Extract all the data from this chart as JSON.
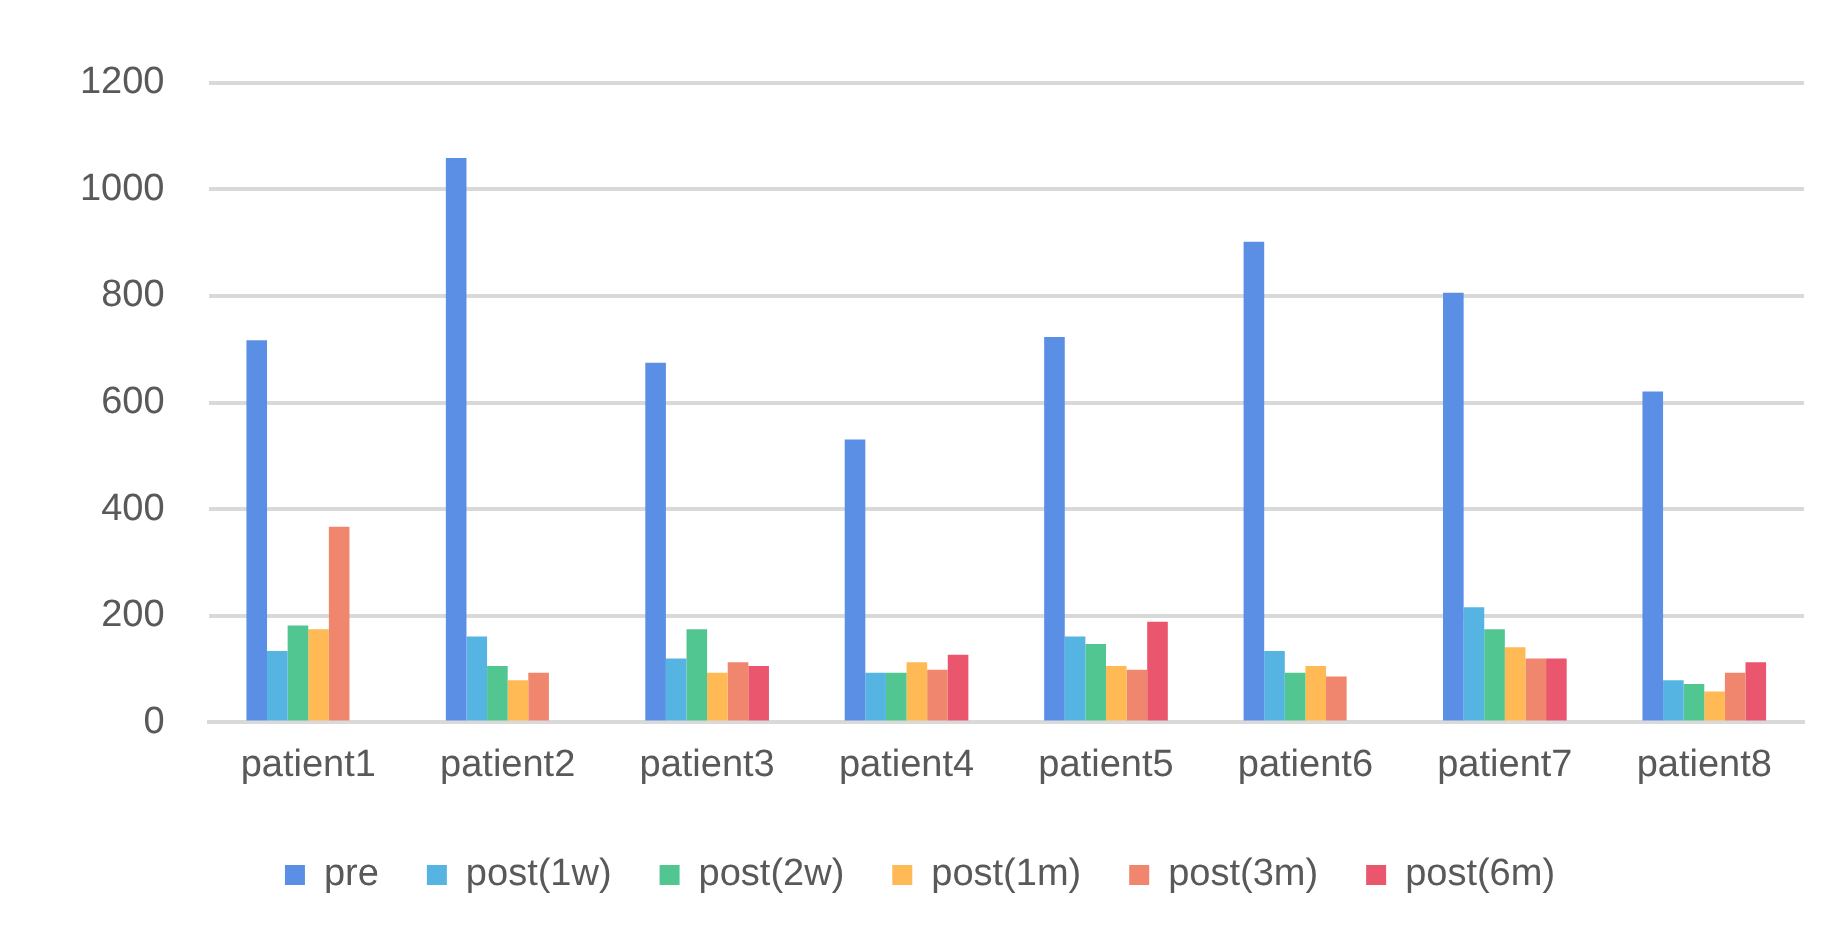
{
  "chart_data": {
    "type": "bar",
    "categories": [
      "patient1",
      "patient2",
      "patient3",
      "patient4",
      "patient5",
      "patient6",
      "patient7",
      "patient8"
    ],
    "series": [
      {
        "name": "pre",
        "color": "#5b8fe6",
        "values": [
          717,
          1059,
          675,
          531,
          723,
          902,
          806,
          621
        ]
      },
      {
        "name": "post(1w)",
        "color": "#56b4e3",
        "values": [
          134,
          161,
          120,
          93,
          161,
          134,
          216,
          79
        ]
      },
      {
        "name": "post(2w)",
        "color": "#52c690",
        "values": [
          182,
          106,
          175,
          93,
          147,
          93,
          175,
          72
        ]
      },
      {
        "name": "post(1m)",
        "color": "#ffb955",
        "values": [
          175,
          79,
          93,
          113,
          106,
          106,
          141,
          58
        ]
      },
      {
        "name": "post(3m)",
        "color": "#f0866e",
        "values": [
          367,
          93,
          113,
          99,
          99,
          86,
          120,
          93
        ]
      },
      {
        "name": "post(6m)",
        "color": "#e9566e",
        "values": [
          null,
          null,
          106,
          127,
          189,
          null,
          120,
          113
        ]
      }
    ],
    "ylim": [
      0,
      1200
    ],
    "yticks": [
      0,
      200,
      400,
      600,
      800,
      1000,
      1200
    ],
    "grid": "y",
    "legend": "bottom"
  }
}
